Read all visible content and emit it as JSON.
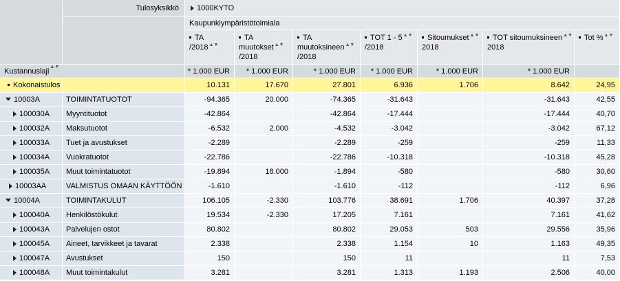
{
  "header": {
    "dim1_label": "Tulosyksikkö",
    "dim1_value": "1000KYTO",
    "dim2_value": "Kaupunkiympäristötoimiala",
    "row_dim_label": "Kustannuslaji",
    "columns": [
      {
        "line1": "TA",
        "line2": "/2018"
      },
      {
        "line1": "TA",
        "line2": "muutokset",
        "line3": "/2018"
      },
      {
        "line1": "TA",
        "line2": "muutoksineen",
        "line3": "/2018"
      },
      {
        "line1": "TOT 1 - 5",
        "line2": "/2018"
      },
      {
        "line1": "Sitoumukset",
        "line2": "2018"
      },
      {
        "line1": "TOT sitoumuksineen",
        "line2": "2018"
      },
      {
        "line1": "Tot %"
      }
    ],
    "units": [
      "* 1.000 EUR",
      "* 1.000 EUR",
      "* 1.000 EUR",
      "* 1.000 EUR",
      "* 1.000 EUR",
      "* 1.000 EUR",
      ""
    ]
  },
  "rows": [
    {
      "code": "Kokonaistulos",
      "name": "",
      "vals": [
        "10.131",
        "17.670",
        "27.801",
        "6.936",
        "1.706",
        "8.642",
        "24,95"
      ]
    },
    {
      "code": "10003A",
      "name": "TOIMINTATUOTOT",
      "vals": [
        "-94.365",
        "20.000",
        "-74.365",
        "-31.643",
        "",
        "-31.643",
        "42,55"
      ]
    },
    {
      "code": "100030A",
      "name": "Myyntituotot",
      "vals": [
        "-42.864",
        "",
        "-42.864",
        "-17.444",
        "",
        "-17.444",
        "40,70"
      ]
    },
    {
      "code": "100032A",
      "name": "Maksutuotot",
      "vals": [
        "-6.532",
        "2.000",
        "-4.532",
        "-3.042",
        "",
        "-3.042",
        "67,12"
      ]
    },
    {
      "code": "100033A",
      "name": "Tuet ja avustukset",
      "vals": [
        "-2.289",
        "",
        "-2.289",
        "-259",
        "",
        "-259",
        "11,33"
      ]
    },
    {
      "code": "100034A",
      "name": "Vuokratuotot",
      "vals": [
        "-22.786",
        "",
        "-22.786",
        "-10.318",
        "",
        "-10.318",
        "45,28"
      ]
    },
    {
      "code": "100035A",
      "name": "Muut toimintatuotot",
      "vals": [
        "-19.894",
        "18.000",
        "-1.894",
        "-580",
        "",
        "-580",
        "30,60"
      ]
    },
    {
      "code": "10003AA",
      "name": "VALMISTUS OMAAN KÄYTTÖÖN",
      "vals": [
        "-1.610",
        "",
        "-1.610",
        "-112",
        "",
        "-112",
        "6,96"
      ]
    },
    {
      "code": "10004A",
      "name": "TOIMINTAKULUT",
      "vals": [
        "106.105",
        "-2.330",
        "103.776",
        "38.691",
        "1.706",
        "40.397",
        "37,28"
      ]
    },
    {
      "code": "100040A",
      "name": "Henkilöstökulut",
      "vals": [
        "19.534",
        "-2.330",
        "17.205",
        "7.161",
        "",
        "7.161",
        "41,62"
      ]
    },
    {
      "code": "100043A",
      "name": "Palvelujen ostot",
      "vals": [
        "80.802",
        "",
        "80.802",
        "29.053",
        "503",
        "29.556",
        "35,96"
      ]
    },
    {
      "code": "100045A",
      "name": "Aineet, tarvikkeet ja tavarat",
      "vals": [
        "2.338",
        "",
        "2.338",
        "1.154",
        "10",
        "1.163",
        "49,35"
      ]
    },
    {
      "code": "100047A",
      "name": "Avustukset",
      "vals": [
        "150",
        "",
        "150",
        "11",
        "",
        "11",
        "7,53"
      ]
    },
    {
      "code": "100048A",
      "name": "Muut toimintakulut",
      "vals": [
        "3.281",
        "",
        "3.281",
        "1.313",
        "1.193",
        "2.506",
        "40,00"
      ]
    }
  ]
}
